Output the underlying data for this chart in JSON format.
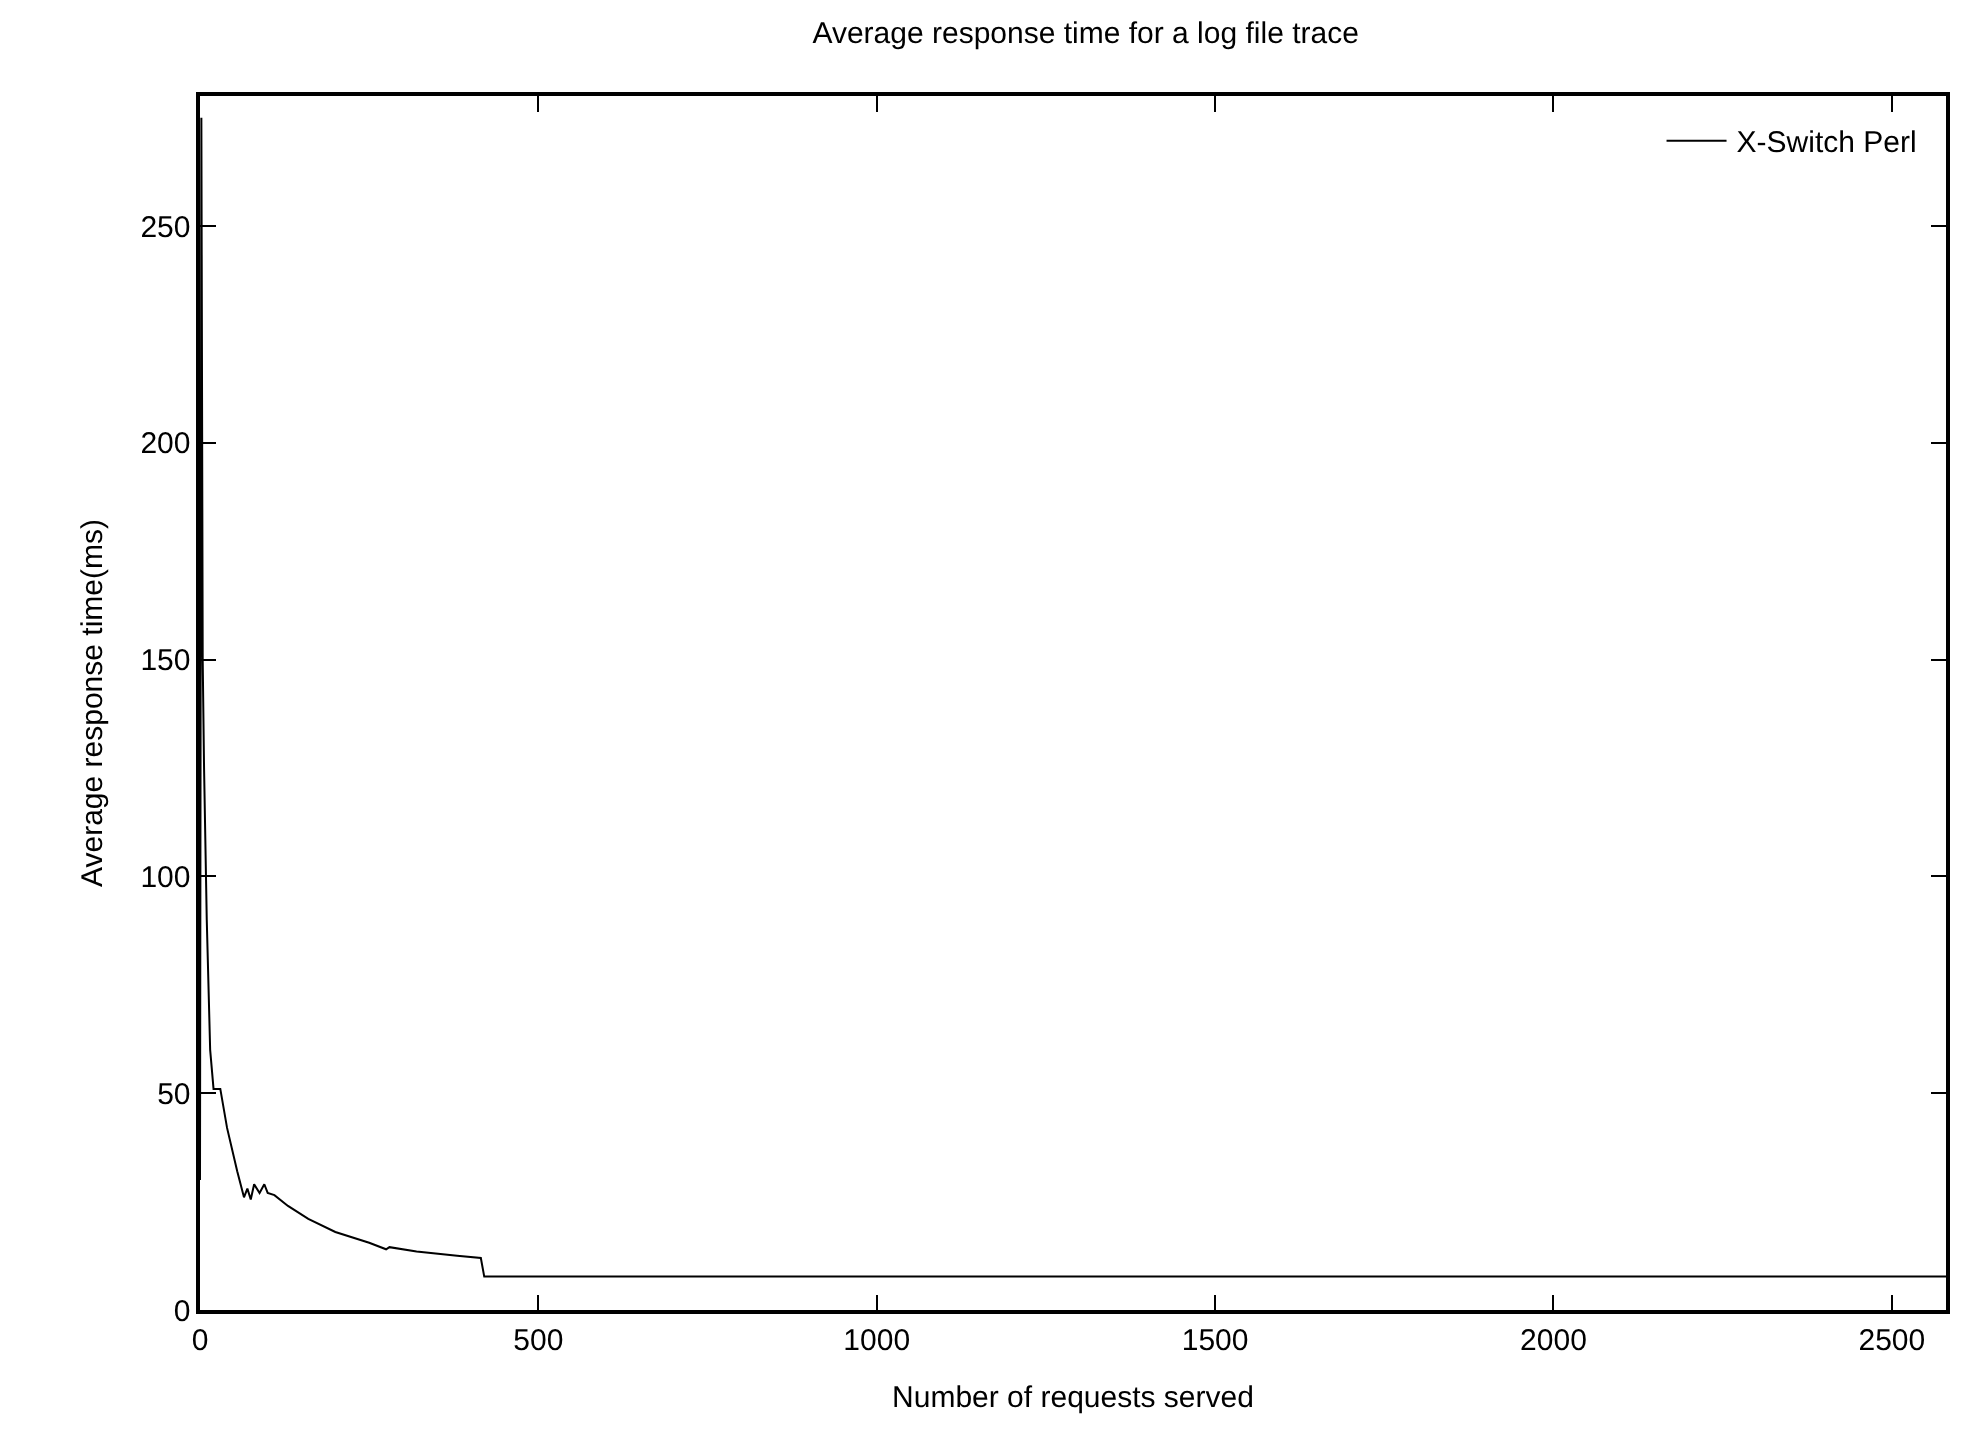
{
  "chart_data": {
    "type": "line",
    "title": "Average response time for a log file trace",
    "xlabel": "Number of requests served",
    "ylabel": "Average response time(ms)",
    "xlim": [
      0,
      2580
    ],
    "xticks": [
      0,
      500,
      1000,
      1500,
      2000,
      2500
    ],
    "ylim": [
      0,
      280
    ],
    "yticks": [
      0,
      50,
      100,
      150,
      200,
      250
    ],
    "legend": "top right",
    "marker": "none",
    "line_style": "solid",
    "series": [
      {
        "name": "X-Switch Perl",
        "color": "#000000",
        "x": [
          0,
          2,
          4,
          6,
          10,
          15,
          20,
          30,
          40,
          55,
          65,
          70,
          75,
          80,
          88,
          95,
          100,
          110,
          130,
          160,
          200,
          250,
          275,
          280,
          320,
          380,
          415,
          420,
          500,
          2580
        ],
        "values": [
          30,
          275,
          150,
          125,
          90,
          60,
          51,
          51,
          42,
          32,
          26,
          28,
          25.5,
          29,
          27,
          29,
          27,
          26.5,
          24,
          21,
          18,
          15.5,
          14,
          14.5,
          13.5,
          12.5,
          12,
          7.7,
          7.7,
          7.7
        ]
      }
    ]
  }
}
